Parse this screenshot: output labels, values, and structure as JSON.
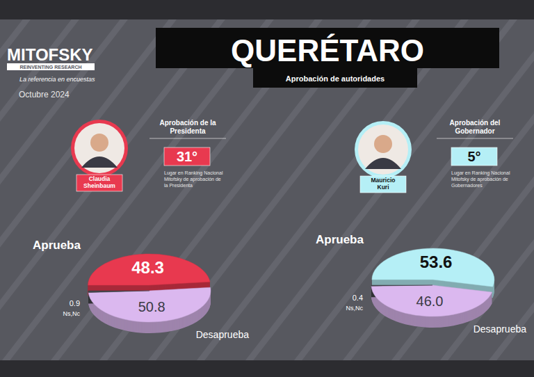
{
  "header": {
    "logo": "MITOFSKY",
    "logo_tagline": "REINVENTING RESEARCH",
    "slogan": "La referencia en encuestas",
    "date": "Octubre 2024",
    "title": "QUERÉTARO",
    "subtitle": "Aprobación de autoridades"
  },
  "chart_data": [
    {
      "type": "pie",
      "title": "Aprobación de la Presidenta",
      "person": "Claudia Sheinbaum",
      "ranking": "31°",
      "ranking_note": "Lugar en Ranking Nacional Mitofsky de aprobación de la Presidenta",
      "categories": [
        "Aprueba",
        "Desaprueba",
        "Ns,Nc"
      ],
      "values": [
        48.3,
        50.8,
        0.9
      ],
      "colors": [
        "#e8394f",
        "#dbb8ef",
        "#45454b"
      ],
      "data_labels": true
    },
    {
      "type": "pie",
      "title": "Aprobación del Gobernador",
      "person": "Mauricio Kuri",
      "ranking": "5°",
      "ranking_note": "Lugar en Ranking Nacional Mitofsky de aprobación de Gobernadores",
      "categories": [
        "Aprueba",
        "Desaprueba",
        "Ns,Nc"
      ],
      "values": [
        53.6,
        46.0,
        0.4
      ],
      "value_labels": [
        "53.6",
        "46.0",
        "0.4"
      ],
      "colors": [
        "#b5eff6",
        "#dbb8ef",
        "#45454b"
      ],
      "data_labels": true
    }
  ]
}
